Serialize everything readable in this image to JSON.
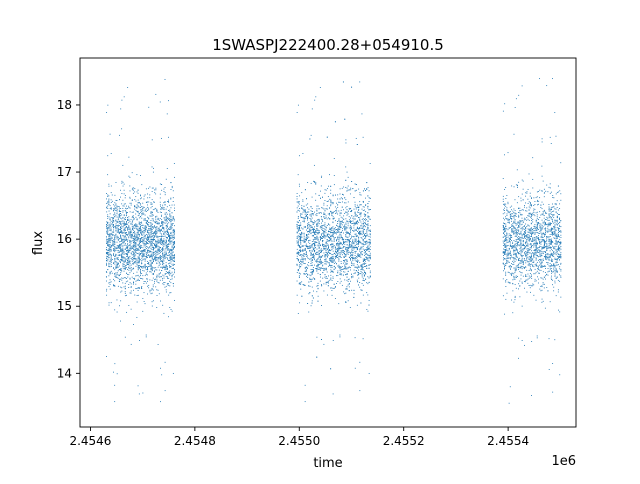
{
  "chart_data": {
    "type": "scatter",
    "title": "1SWASPJ222400.28+054910.5",
    "xlabel": "time",
    "ylabel": "flux",
    "x_offset_label": "1e6",
    "xlim": [
      2454580,
      2455530
    ],
    "ylim": [
      13.2,
      18.7
    ],
    "x_ticks": [
      2454600,
      2454800,
      2455000,
      2455200,
      2455400
    ],
    "x_tick_labels": [
      "2.4546",
      "2.4548",
      "2.4550",
      "2.4552",
      "2.4554"
    ],
    "y_ticks": [
      14,
      15,
      16,
      17,
      18
    ],
    "y_tick_labels": [
      "14",
      "15",
      "16",
      "17",
      "18"
    ],
    "grid": false,
    "legend": "none",
    "point_color": "#1f77b4",
    "observing_seasons": [
      {
        "x_start": 2454630,
        "x_end": 2454760,
        "center_flux": 15.95,
        "spread": 0.35,
        "points": 2600,
        "outliers": [
          13.5,
          18.4
        ]
      },
      {
        "x_start": 2454995,
        "x_end": 2455135,
        "center_flux": 15.95,
        "spread": 0.35,
        "points": 2600,
        "outliers": [
          13.45,
          18.35
        ]
      },
      {
        "x_start": 2455390,
        "x_end": 2455500,
        "center_flux": 15.95,
        "spread": 0.33,
        "points": 1800,
        "outliers": [
          13.45,
          18.4
        ]
      }
    ]
  }
}
